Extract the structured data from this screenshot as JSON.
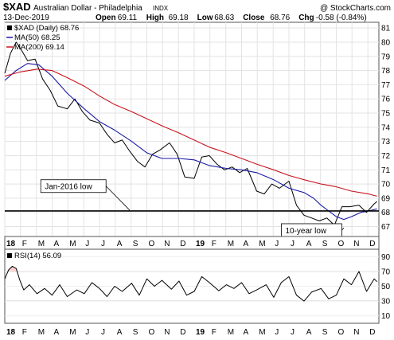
{
  "header": {
    "symbol": "$XAD",
    "name": "Australian Dollar - Philadelphia",
    "exchange": "INDX",
    "watermark": "@ StockCharts.com",
    "date": "13-Dec-2019",
    "quote": [
      {
        "label": "Open",
        "value": "69.11"
      },
      {
        "label": "High",
        "value": "69.18"
      },
      {
        "label": "Low",
        "value": "68.63"
      },
      {
        "label": "Close",
        "value": "68.76"
      },
      {
        "label": "Chg",
        "value": "-0.58 (-0.84%)"
      }
    ]
  },
  "colors": {
    "price": "#000000",
    "ma50": "#1a1aa6",
    "ma200": "#c8141e",
    "support_line": "#000000",
    "rsi": "#000000",
    "rsi_bands": "#ffd2d2"
  },
  "chart_data": [
    {
      "type": "line",
      "panel": "price",
      "legend": [
        {
          "label": "$XAD (Daily) 68.76",
          "color": "#000000",
          "kind": "square"
        },
        {
          "label": "MA(50) 68.25",
          "color": "#1a1aa6",
          "kind": "line"
        },
        {
          "label": "MA(200) 69.14",
          "color": "#c8141e",
          "kind": "line"
        }
      ],
      "ylim": [
        66.3,
        81.4
      ],
      "yticks": [
        67,
        68,
        69,
        70,
        71,
        72,
        73,
        74,
        75,
        76,
        77,
        78,
        79,
        80,
        81
      ],
      "xlim": [
        2018.0,
        2019.975
      ],
      "x_ticks": [
        {
          "x": 2018.0,
          "label": "18",
          "bold": true
        },
        {
          "x": 2018.083,
          "label": "F"
        },
        {
          "x": 2018.167,
          "label": "M"
        },
        {
          "x": 2018.25,
          "label": "A"
        },
        {
          "x": 2018.333,
          "label": "M"
        },
        {
          "x": 2018.417,
          "label": "J"
        },
        {
          "x": 2018.5,
          "label": "J"
        },
        {
          "x": 2018.583,
          "label": "A"
        },
        {
          "x": 2018.667,
          "label": "S"
        },
        {
          "x": 2018.75,
          "label": "O"
        },
        {
          "x": 2018.833,
          "label": "N"
        },
        {
          "x": 2018.917,
          "label": "D"
        },
        {
          "x": 2019.0,
          "label": "19",
          "bold": true
        },
        {
          "x": 2019.083,
          "label": "F"
        },
        {
          "x": 2019.167,
          "label": "M"
        },
        {
          "x": 2019.25,
          "label": "A"
        },
        {
          "x": 2019.333,
          "label": "M"
        },
        {
          "x": 2019.417,
          "label": "J"
        },
        {
          "x": 2019.5,
          "label": "J"
        },
        {
          "x": 2019.583,
          "label": "A"
        },
        {
          "x": 2019.667,
          "label": "S"
        },
        {
          "x": 2019.75,
          "label": "O"
        },
        {
          "x": 2019.833,
          "label": "N"
        },
        {
          "x": 2019.917,
          "label": "D"
        }
      ],
      "series": [
        {
          "name": "$XAD (Daily)",
          "x": [
            2018.0,
            2018.03,
            2018.06,
            2018.09,
            2018.12,
            2018.16,
            2018.2,
            2018.24,
            2018.28,
            2018.33,
            2018.37,
            2018.41,
            2018.45,
            2018.5,
            2018.54,
            2018.58,
            2018.62,
            2018.66,
            2018.7,
            2018.74,
            2018.78,
            2018.82,
            2018.87,
            2018.91,
            2018.95,
            2019.0,
            2019.04,
            2019.08,
            2019.12,
            2019.16,
            2019.2,
            2019.24,
            2019.28,
            2019.33,
            2019.37,
            2019.41,
            2019.45,
            2019.5,
            2019.54,
            2019.58,
            2019.62,
            2019.66,
            2019.7,
            2019.74,
            2019.78,
            2019.82,
            2019.87,
            2019.91,
            2019.95,
            2019.965
          ],
          "values": [
            77.8,
            79.2,
            80.0,
            79.4,
            78.7,
            78.8,
            77.4,
            76.6,
            75.5,
            75.3,
            76.0,
            75.1,
            74.5,
            74.3,
            73.5,
            72.9,
            73.1,
            72.3,
            71.6,
            71.2,
            72.1,
            72.4,
            72.9,
            72.1,
            70.5,
            70.4,
            71.9,
            72.0,
            71.4,
            71.0,
            71.2,
            70.8,
            71.1,
            69.5,
            69.3,
            70.0,
            69.7,
            70.2,
            68.5,
            67.8,
            67.6,
            67.4,
            67.6,
            67.1,
            68.4,
            68.4,
            68.5,
            68.0,
            68.6,
            68.76
          ]
        },
        {
          "name": "MA(50)",
          "x": [
            2018.0,
            2018.06,
            2018.12,
            2018.18,
            2018.25,
            2018.33,
            2018.42,
            2018.5,
            2018.58,
            2018.67,
            2018.75,
            2018.83,
            2018.92,
            2019.0,
            2019.08,
            2019.17,
            2019.25,
            2019.33,
            2019.42,
            2019.5,
            2019.58,
            2019.63,
            2019.67,
            2019.71,
            2019.75,
            2019.79,
            2019.83,
            2019.88,
            2019.92,
            2019.965
          ],
          "values": [
            77.3,
            78.0,
            78.5,
            78.4,
            77.6,
            76.4,
            75.3,
            74.4,
            73.8,
            73.0,
            72.2,
            71.8,
            71.8,
            71.7,
            71.3,
            71.1,
            71.0,
            70.8,
            70.3,
            69.7,
            69.4,
            69.0,
            68.5,
            68.1,
            67.7,
            67.5,
            67.7,
            68.0,
            68.1,
            68.25
          ]
        },
        {
          "name": "MA(200)",
          "x": [
            2018.0,
            2018.08,
            2018.17,
            2018.25,
            2018.33,
            2018.42,
            2018.5,
            2018.58,
            2018.67,
            2018.75,
            2018.83,
            2018.92,
            2019.0,
            2019.08,
            2019.17,
            2019.25,
            2019.33,
            2019.42,
            2019.5,
            2019.58,
            2019.67,
            2019.75,
            2019.83,
            2019.92,
            2019.965
          ],
          "values": [
            77.6,
            77.9,
            78.1,
            78.0,
            77.5,
            76.9,
            76.2,
            75.6,
            75.1,
            74.6,
            74.1,
            73.6,
            73.1,
            72.6,
            72.2,
            71.8,
            71.4,
            71.0,
            70.6,
            70.3,
            70.0,
            69.8,
            69.5,
            69.3,
            69.14
          ]
        }
      ],
      "hlines": [
        {
          "y": 68.1,
          "label": "Jan-2016 low"
        }
      ],
      "annotations": [
        {
          "text": "Jan-2016 low",
          "box_at": [
            2018.19,
            70.3
          ],
          "arrow_to": [
            2018.66,
            68.15
          ]
        },
        {
          "text": "10-year low",
          "box_at": [
            2019.46,
            67.2
          ],
          "arrow_to": [
            2019.79,
            66.9
          ]
        }
      ]
    },
    {
      "type": "line",
      "panel": "rsi",
      "legend": [
        {
          "label": "RSI(14) 56.09",
          "color": "#000000",
          "kind": "square"
        }
      ],
      "ylim": [
        0,
        100
      ],
      "yticks": [
        10,
        30,
        50,
        70,
        90
      ],
      "bands": [
        30,
        70
      ],
      "midline": 50,
      "series": [
        {
          "name": "RSI(14)",
          "x": [
            2018.0,
            2018.02,
            2018.04,
            2018.06,
            2018.08,
            2018.1,
            2018.13,
            2018.17,
            2018.21,
            2018.25,
            2018.29,
            2018.33,
            2018.38,
            2018.42,
            2018.46,
            2018.5,
            2018.54,
            2018.58,
            2018.62,
            2018.67,
            2018.71,
            2018.75,
            2018.79,
            2018.83,
            2018.88,
            2018.92,
            2018.96,
            2019.0,
            2019.04,
            2019.08,
            2019.13,
            2019.17,
            2019.21,
            2019.25,
            2019.29,
            2019.33,
            2019.38,
            2019.42,
            2019.46,
            2019.5,
            2019.54,
            2019.58,
            2019.62,
            2019.67,
            2019.71,
            2019.75,
            2019.79,
            2019.83,
            2019.87,
            2019.91,
            2019.95,
            2019.965
          ],
          "values": [
            60,
            72,
            77,
            74,
            58,
            45,
            52,
            40,
            47,
            38,
            52,
            36,
            45,
            40,
            55,
            47,
            36,
            50,
            43,
            54,
            38,
            60,
            50,
            58,
            46,
            57,
            38,
            43,
            63,
            55,
            44,
            52,
            47,
            55,
            40,
            45,
            52,
            35,
            55,
            63,
            38,
            30,
            42,
            47,
            33,
            38,
            60,
            52,
            70,
            43,
            60,
            56.09
          ]
        }
      ]
    }
  ]
}
